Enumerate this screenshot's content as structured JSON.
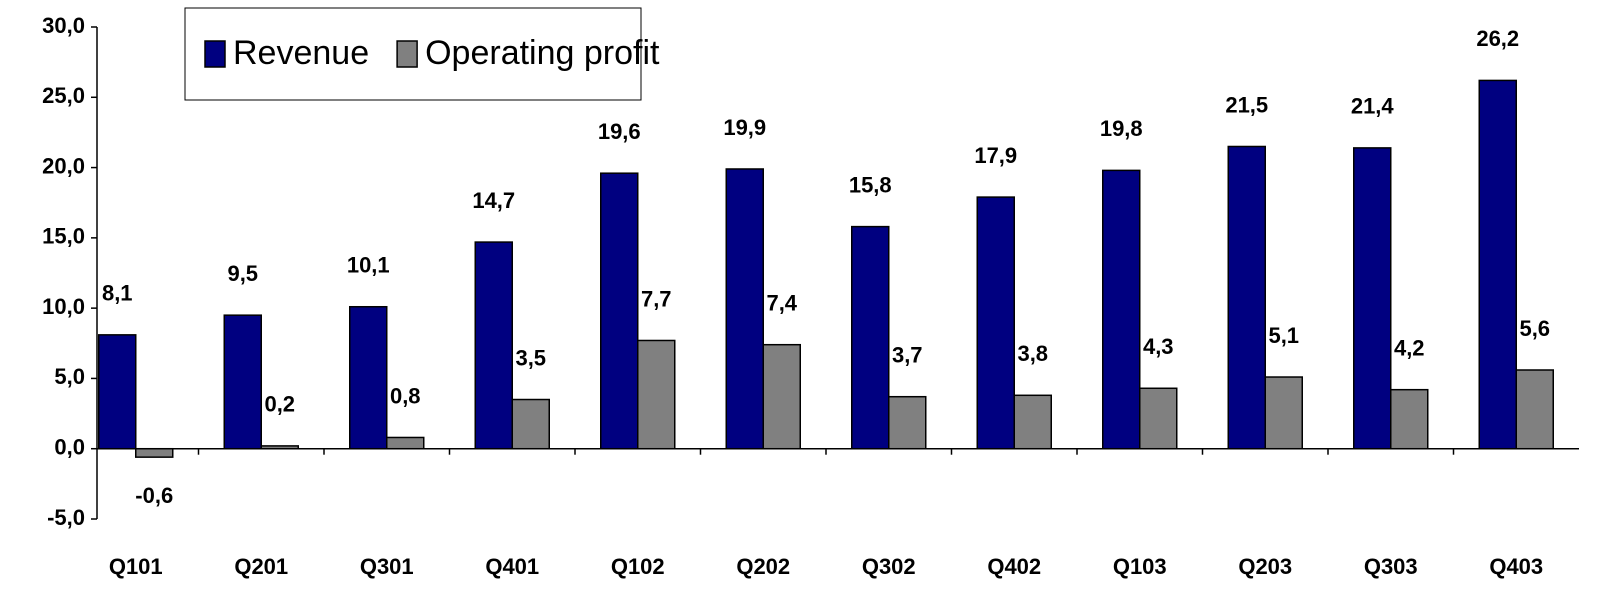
{
  "chart_data": {
    "type": "bar",
    "categories": [
      "Q101",
      "Q201",
      "Q301",
      "Q401",
      "Q102",
      "Q202",
      "Q302",
      "Q402",
      "Q103",
      "Q203",
      "Q303",
      "Q403"
    ],
    "series": [
      {
        "name": "Revenue",
        "color": "#000080",
        "values": [
          8.1,
          9.5,
          10.1,
          14.7,
          19.6,
          19.9,
          15.8,
          17.9,
          19.8,
          21.5,
          21.4,
          26.2
        ],
        "value_labels": [
          "8,1",
          "9,5",
          "10,1",
          "14,7",
          "19,6",
          "19,9",
          "15,8",
          "17,9",
          "19,8",
          "21,5",
          "21,4",
          "26,2"
        ]
      },
      {
        "name": "Operating profit",
        "color": "#808080",
        "values": [
          -0.6,
          0.2,
          0.8,
          3.5,
          7.7,
          7.4,
          3.7,
          3.8,
          4.3,
          5.1,
          4.2,
          5.6
        ],
        "value_labels": [
          "-0,6",
          "0,2",
          "0,8",
          "3,5",
          "7,7",
          "7,4",
          "3,7",
          "3,8",
          "4,3",
          "5,1",
          "4,2",
          "5,6"
        ]
      }
    ],
    "ylim": [
      -5,
      30
    ],
    "yticks": [
      {
        "value": -5,
        "label": "-5,0"
      },
      {
        "value": 0,
        "label": "0,0"
      },
      {
        "value": 5,
        "label": "5,0"
      },
      {
        "value": 10,
        "label": "10,0"
      },
      {
        "value": 15,
        "label": "15,0"
      },
      {
        "value": 20,
        "label": "20,0"
      },
      {
        "value": 25,
        "label": "25,0"
      },
      {
        "value": 30,
        "label": "30,0"
      }
    ],
    "legend": "top-left"
  }
}
